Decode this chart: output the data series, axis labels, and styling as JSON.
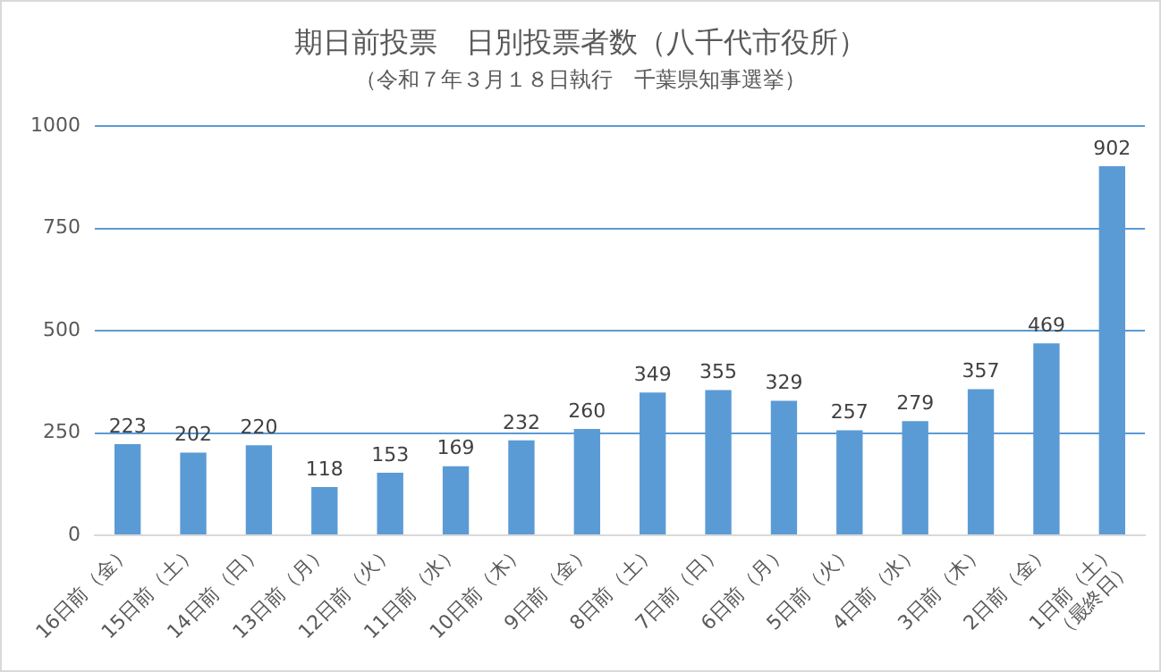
{
  "chart_data": {
    "type": "bar",
    "title": "期日前投票　日別投票者数（八千代市役所）",
    "subtitle": "（令和７年３月１８日執行　千葉県知事選挙）",
    "categories": [
      "16日前（金）",
      "15日前（土）",
      "14日前（日）",
      "13日前（月）",
      "12日前（火）",
      "11日前（水）",
      "10日前（木）",
      "9日前（金）",
      "8日前（土）",
      "7日前（日）",
      "6日前（月）",
      "5日前（火）",
      "4日前（水）",
      "3日前（木）",
      "2日前（金）",
      "1日前（土）\n（最終日）"
    ],
    "values": [
      223,
      202,
      220,
      118,
      153,
      169,
      232,
      260,
      349,
      355,
      329,
      257,
      279,
      357,
      469,
      902
    ],
    "color": "#5b9bd5",
    "ylim": [
      0,
      1000
    ],
    "yticks": [
      0,
      250,
      500,
      750,
      1000
    ],
    "grid": "y",
    "data_labels": true
  }
}
